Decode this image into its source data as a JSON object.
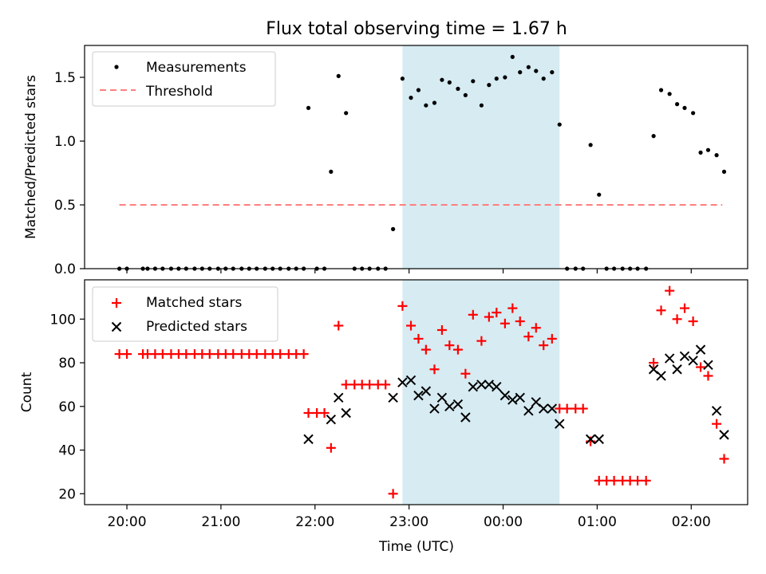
{
  "title": "Flux total observing time = 1.67 h",
  "colors": {
    "measurement": "#000000",
    "threshold": "#ff7f7f",
    "matched": "#ff0000",
    "predicted": "#000000",
    "shade": "#add8e6"
  },
  "chart_data": [
    {
      "type": "scatter",
      "ylabel": "Matched/Predicted stars",
      "ylim": [
        0,
        1.75
      ],
      "yticks": [
        0.0,
        0.5,
        1.0,
        1.5
      ],
      "ytick_labels": [
        "0.0",
        "0.5",
        "1.0",
        "1.5"
      ],
      "xlim_hours": [
        19.55,
        26.6
      ],
      "shaded_interval_hours": [
        22.93,
        24.6
      ],
      "legend": {
        "position": "top-left",
        "entries": [
          "Measurements",
          "Threshold"
        ]
      },
      "threshold": {
        "name": "Threshold",
        "value": 0.5,
        "x_range_hours": [
          19.92,
          26.33
        ]
      },
      "series": [
        {
          "name": "Measurements",
          "x_hours": [
            19.92,
            20.0,
            20.17,
            20.22,
            20.3,
            20.38,
            20.47,
            20.55,
            20.63,
            20.72,
            20.8,
            20.88,
            20.97,
            21.05,
            21.13,
            21.22,
            21.3,
            21.38,
            21.47,
            21.55,
            21.63,
            21.72,
            21.8,
            21.88,
            21.93,
            22.02,
            22.1,
            22.17,
            22.25,
            22.33,
            22.42,
            22.5,
            22.58,
            22.67,
            22.75,
            22.83,
            22.93,
            23.02,
            23.1,
            23.18,
            23.27,
            23.35,
            23.43,
            23.52,
            23.6,
            23.68,
            23.77,
            23.85,
            23.93,
            24.02,
            24.1,
            24.18,
            24.27,
            24.35,
            24.43,
            24.52,
            24.6,
            24.68,
            24.77,
            24.85,
            24.93,
            25.02,
            25.1,
            25.18,
            25.27,
            25.35,
            25.43,
            25.52,
            25.6,
            25.68,
            25.77,
            25.85,
            25.93,
            26.02,
            26.1,
            26.18,
            26.27,
            26.35
          ],
          "y": [
            0,
            0,
            0,
            0,
            0,
            0,
            0,
            0,
            0,
            0,
            0,
            0,
            0,
            0,
            0,
            0,
            0,
            0,
            0,
            0,
            0,
            0,
            0,
            0,
            1.26,
            0,
            0,
            0.76,
            1.51,
            1.22,
            0,
            0,
            0,
            0,
            0,
            0.31,
            1.49,
            1.34,
            1.4,
            1.28,
            1.3,
            1.48,
            1.46,
            1.41,
            1.36,
            1.47,
            1.28,
            1.44,
            1.49,
            1.5,
            1.66,
            1.54,
            1.58,
            1.55,
            1.49,
            1.54,
            1.13,
            0,
            0,
            0,
            0.97,
            0.58,
            0,
            0,
            0,
            0,
            0,
            0,
            1.04,
            1.4,
            1.37,
            1.29,
            1.26,
            1.22,
            0.91,
            0.93,
            0.89,
            0.76
          ]
        }
      ],
      "xticks_hours": [
        20,
        21,
        22,
        23,
        24,
        25,
        26
      ],
      "xtick_labels": []
    },
    {
      "type": "scatter",
      "xlabel": "Time (UTC)",
      "ylabel": "Count",
      "ylim": [
        15,
        118
      ],
      "yticks": [
        20,
        40,
        60,
        80,
        100
      ],
      "ytick_labels": [
        "20",
        "40",
        "60",
        "80",
        "100"
      ],
      "xlim_hours": [
        19.55,
        26.6
      ],
      "shaded_interval_hours": [
        22.93,
        24.6
      ],
      "xticks_hours": [
        20,
        21,
        22,
        23,
        24,
        25,
        26
      ],
      "xtick_labels": [
        "20:00",
        "21:00",
        "22:00",
        "23:00",
        "00:00",
        "01:00",
        "02:00"
      ],
      "legend": {
        "position": "top-left",
        "entries": [
          "Matched stars",
          "Predicted stars"
        ]
      },
      "series": [
        {
          "name": "Matched stars",
          "marker": "plus",
          "x_hours": [
            19.92,
            20.0,
            20.17,
            20.22,
            20.3,
            20.38,
            20.47,
            20.55,
            20.63,
            20.72,
            20.8,
            20.88,
            20.97,
            21.05,
            21.13,
            21.22,
            21.3,
            21.38,
            21.47,
            21.55,
            21.63,
            21.72,
            21.8,
            21.88,
            21.93,
            22.02,
            22.1,
            22.17,
            22.25,
            22.33,
            22.42,
            22.5,
            22.58,
            22.67,
            22.75,
            22.83,
            22.93,
            23.02,
            23.1,
            23.18,
            23.27,
            23.35,
            23.43,
            23.52,
            23.6,
            23.68,
            23.77,
            23.85,
            23.93,
            24.02,
            24.1,
            24.18,
            24.27,
            24.35,
            24.43,
            24.52,
            24.6,
            24.68,
            24.77,
            24.85,
            24.93,
            25.02,
            25.1,
            25.18,
            25.27,
            25.35,
            25.43,
            25.52,
            25.6,
            25.68,
            25.77,
            25.85,
            25.93,
            26.02,
            26.1,
            26.18,
            26.27,
            26.35
          ],
          "y": [
            84,
            84,
            84,
            84,
            84,
            84,
            84,
            84,
            84,
            84,
            84,
            84,
            84,
            84,
            84,
            84,
            84,
            84,
            84,
            84,
            84,
            84,
            84,
            84,
            57,
            57,
            57,
            41,
            97,
            70,
            70,
            70,
            70,
            70,
            70,
            20,
            106,
            97,
            91,
            86,
            77,
            95,
            88,
            86,
            75,
            102,
            90,
            101,
            103,
            98,
            105,
            99,
            92,
            96,
            88,
            91,
            59,
            59,
            59,
            59,
            44,
            26,
            26,
            26,
            26,
            26,
            26,
            26,
            80,
            104,
            113,
            100,
            105,
            99,
            78,
            74,
            52,
            36
          ]
        },
        {
          "name": "Predicted stars",
          "marker": "x",
          "x_hours": [
            21.93,
            22.17,
            22.25,
            22.33,
            22.83,
            22.93,
            23.02,
            23.1,
            23.18,
            23.27,
            23.35,
            23.43,
            23.52,
            23.6,
            23.68,
            23.77,
            23.85,
            23.93,
            24.02,
            24.1,
            24.18,
            24.27,
            24.35,
            24.43,
            24.52,
            24.6,
            24.93,
            25.02,
            25.6,
            25.68,
            25.77,
            25.85,
            25.93,
            26.02,
            26.1,
            26.18,
            26.27,
            26.35
          ],
          "y": [
            45,
            54,
            64,
            57,
            64,
            71,
            72,
            65,
            67,
            59,
            64,
            60,
            61,
            55,
            69,
            70,
            70,
            69,
            65,
            63,
            64,
            58,
            62,
            59,
            59,
            52,
            45,
            45,
            77,
            74,
            82,
            77,
            83,
            81,
            86,
            79,
            58,
            47
          ]
        }
      ]
    }
  ]
}
